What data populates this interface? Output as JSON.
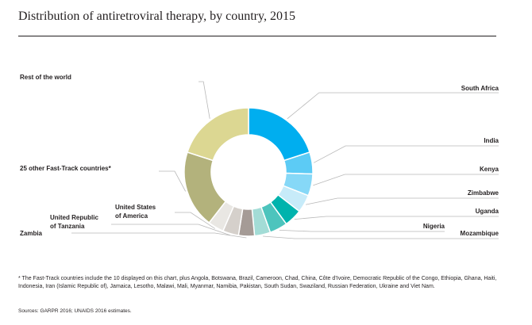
{
  "title": "Distribution of antiretroviral therapy, by country, 2015",
  "footnote": "* The Fast-Track countries include the 10 displayed on this chart, plus Angola, Botswana, Brazil, Cameroon, Chad, China, Côte d’Ivoire, Democratic Republic of the Congo, Ethiopia, Ghana, Haiti, Indonesia, Iran (Islamic Republic of), Jamaica, Lesotho, Malawi, Mali, Myanmar, Namibia, Pakistan, South Sudan, Swaziland, Russian Federation, Ukraine and Viet Nam.",
  "sources": "Sources: GARPR 2016; UNAIDS 2016 estimates.",
  "chart_data": {
    "type": "pie",
    "title": "Distribution of antiretroviral therapy, by country, 2015",
    "donut": true,
    "labels": [
      "South Africa",
      "India",
      "Kenya",
      "Zimbabwe",
      "Uganda",
      "Nigeria",
      "Mozambique",
      "Zambia",
      "United Republic of Tanzania",
      "United States of America",
      "25 other Fast-Track countries*",
      "Rest of the world"
    ],
    "values": [
      20.0,
      5.5,
      5.5,
      4.5,
      4.5,
      4.5,
      4.0,
      4.0,
      4.0,
      4.0,
      19.5,
      20.0
    ],
    "colors": [
      "#00aeef",
      "#5ccbf5",
      "#86d8f7",
      "#c7ebf9",
      "#00b3ad",
      "#4dc4bd",
      "#a3dcd6",
      "#a59b96",
      "#d5d0cb",
      "#e9e7e3",
      "#b3b27c",
      "#dcd792"
    ]
  }
}
